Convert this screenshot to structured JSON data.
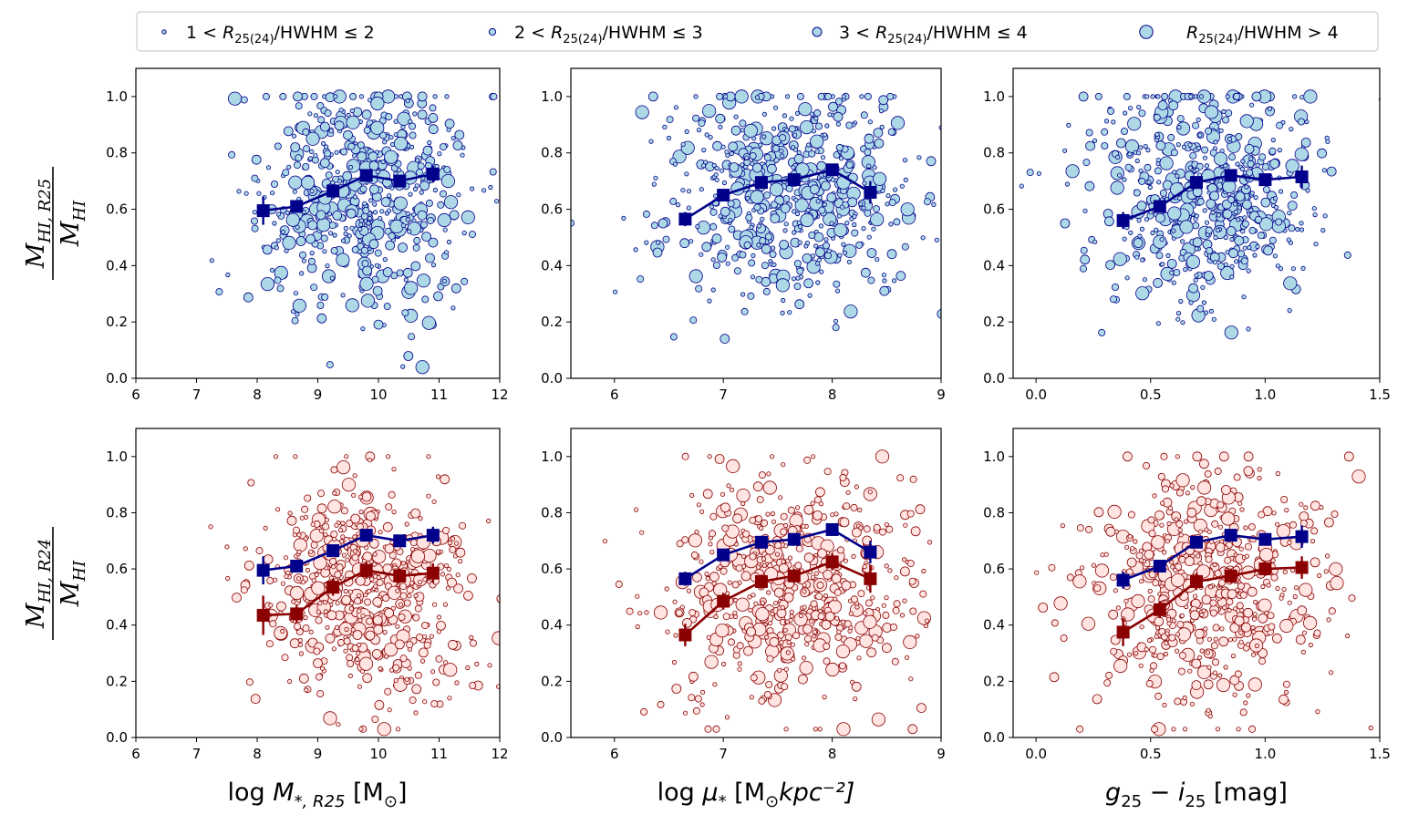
{
  "colors": {
    "top_fill": "#add8e6",
    "top_edge": "#00008b",
    "bottom_fill": "#ffe4e1",
    "bottom_edge": "#8b0000",
    "trend_blue": "#00008b",
    "trend_red": "#8b0000"
  },
  "legend": {
    "items": [
      {
        "prefix": "1 <",
        "var": "R",
        "sub": "25(24)",
        "suffix": "/HWHM ≤ 2",
        "marker_size": 1
      },
      {
        "prefix": "2 <",
        "var": "R",
        "sub": "25(24)",
        "suffix": "/HWHM ≤ 3",
        "marker_size": 2
      },
      {
        "prefix": "3 <",
        "var": "R",
        "sub": "25(24)",
        "suffix": "/HWHM ≤ 4",
        "marker_size": 3
      },
      {
        "prefix": "",
        "var": "R",
        "sub": "25(24)",
        "suffix": "/HWHM > 4",
        "marker_size": 4
      }
    ]
  },
  "row_labels": [
    {
      "num": "M",
      "num_sub": "HI, R25",
      "den": "M",
      "den_sub": "HI"
    },
    {
      "num": "M",
      "num_sub": "HI, R24",
      "den": "M",
      "den_sub": "HI"
    }
  ],
  "col_labels": [
    {
      "pre": "log ",
      "var": "M",
      "sub": "*, R25",
      "post": " [M",
      "post_sub": "⊙",
      "tail": "]"
    },
    {
      "pre": "log ",
      "var": "μ",
      "sub": "*",
      "post": " [M",
      "post_sub": "⊙",
      "tail": "kpc⁻²]"
    },
    {
      "pre": "",
      "var": "g",
      "sub": "25",
      "post": " − i",
      "post_sub": "25",
      "tail": " [mag]"
    }
  ],
  "chart_data": [
    {
      "id": "top-mass",
      "type": "scatter",
      "row": 0,
      "col": 0,
      "xlim": [
        6,
        12
      ],
      "ylim": [
        0,
        1.1
      ],
      "xticks": [
        "6",
        "7",
        "8",
        "9",
        "10",
        "11",
        "12"
      ],
      "xtick_values": [
        6,
        7,
        8,
        9,
        10,
        11,
        12
      ],
      "yticks": [
        "0.0",
        "0.2",
        "0.4",
        "0.6",
        "0.8",
        "1.0"
      ],
      "ytick_values": [
        0,
        0.2,
        0.4,
        0.6,
        0.8,
        1.0
      ],
      "cloud": {
        "n": 600,
        "x_mean": 9.8,
        "x_sd": 0.9,
        "y_mean": 0.65,
        "y_sd": 0.2,
        "seed": 11
      },
      "series": [
        {
          "name": "blue trend",
          "x": [
            8.1,
            8.65,
            9.25,
            9.8,
            10.35,
            10.9
          ],
          "y": [
            0.595,
            0.61,
            0.665,
            0.72,
            0.7,
            0.725
          ],
          "yerr": [
            0.05,
            0.02,
            0.015,
            0.015,
            0.015,
            0.03
          ]
        }
      ]
    },
    {
      "id": "top-density",
      "type": "scatter",
      "row": 0,
      "col": 1,
      "xlim": [
        5.6,
        9
      ],
      "ylim": [
        0,
        1.1
      ],
      "xticks": [
        "6",
        "7",
        "8",
        "9"
      ],
      "xtick_values": [
        6,
        7,
        8,
        9
      ],
      "yticks": [
        "0.0",
        "0.2",
        "0.4",
        "0.6",
        "0.8",
        "1.0"
      ],
      "ytick_values": [
        0,
        0.2,
        0.4,
        0.6,
        0.8,
        1.0
      ],
      "cloud": {
        "n": 600,
        "x_mean": 7.6,
        "x_sd": 0.55,
        "y_mean": 0.65,
        "y_sd": 0.2,
        "seed": 23
      },
      "series": [
        {
          "name": "blue trend",
          "x": [
            6.65,
            7.0,
            7.35,
            7.65,
            8.0,
            8.35
          ],
          "y": [
            0.565,
            0.65,
            0.695,
            0.705,
            0.74,
            0.66
          ],
          "yerr": [
            0.025,
            0.02,
            0.015,
            0.02,
            0.02,
            0.04
          ]
        }
      ]
    },
    {
      "id": "top-color",
      "type": "scatter",
      "row": 0,
      "col": 2,
      "xlim": [
        -0.1,
        1.5
      ],
      "ylim": [
        0,
        1.1
      ],
      "xticks": [
        "0.0",
        "0.5",
        "1.0",
        "1.5"
      ],
      "xtick_values": [
        0,
        0.5,
        1.0,
        1.5
      ],
      "yticks": [
        "0.0",
        "0.2",
        "0.4",
        "0.6",
        "0.8",
        "1.0"
      ],
      "ytick_values": [
        0,
        0.2,
        0.4,
        0.6,
        0.8,
        1.0
      ],
      "cloud": {
        "n": 600,
        "x_mean": 0.75,
        "x_sd": 0.25,
        "y_mean": 0.65,
        "y_sd": 0.2,
        "seed": 37
      },
      "series": [
        {
          "name": "blue trend",
          "x": [
            0.38,
            0.54,
            0.7,
            0.85,
            1.0,
            1.16
          ],
          "y": [
            0.56,
            0.61,
            0.695,
            0.72,
            0.705,
            0.715
          ],
          "yerr": [
            0.03,
            0.02,
            0.015,
            0.015,
            0.02,
            0.04
          ]
        }
      ]
    },
    {
      "id": "bottom-mass",
      "type": "scatter",
      "row": 1,
      "col": 0,
      "xlim": [
        6,
        12
      ],
      "ylim": [
        0,
        1.1
      ],
      "xticks": [
        "6",
        "7",
        "8",
        "9",
        "10",
        "11",
        "12"
      ],
      "xtick_values": [
        6,
        7,
        8,
        9,
        10,
        11,
        12
      ],
      "yticks": [
        "0.0",
        "0.2",
        "0.4",
        "0.6",
        "0.8",
        "1.0"
      ],
      "ytick_values": [
        0,
        0.2,
        0.4,
        0.6,
        0.8,
        1.0
      ],
      "cloud": {
        "n": 600,
        "x_mean": 9.8,
        "x_sd": 0.9,
        "y_mean": 0.53,
        "y_sd": 0.2,
        "seed": 53
      },
      "series": [
        {
          "name": "blue trend",
          "x": [
            8.1,
            8.65,
            9.25,
            9.8,
            10.35,
            10.9
          ],
          "y": [
            0.595,
            0.61,
            0.665,
            0.72,
            0.7,
            0.72
          ],
          "yerr": [
            0.05,
            0.02,
            0.015,
            0.015,
            0.015,
            0.03
          ]
        },
        {
          "name": "red trend",
          "x": [
            8.1,
            8.65,
            9.25,
            9.8,
            10.35,
            10.9
          ],
          "y": [
            0.435,
            0.44,
            0.535,
            0.595,
            0.575,
            0.585
          ],
          "yerr": [
            0.07,
            0.03,
            0.03,
            0.03,
            0.025,
            0.035
          ]
        }
      ]
    },
    {
      "id": "bottom-density",
      "type": "scatter",
      "row": 1,
      "col": 1,
      "xlim": [
        5.6,
        9
      ],
      "ylim": [
        0,
        1.1
      ],
      "xticks": [
        "6",
        "7",
        "8",
        "9"
      ],
      "xtick_values": [
        6,
        7,
        8,
        9
      ],
      "yticks": [
        "0.0",
        "0.2",
        "0.4",
        "0.6",
        "0.8",
        "1.0"
      ],
      "ytick_values": [
        0,
        0.2,
        0.4,
        0.6,
        0.8,
        1.0
      ],
      "cloud": {
        "n": 600,
        "x_mean": 7.6,
        "x_sd": 0.55,
        "y_mean": 0.53,
        "y_sd": 0.2,
        "seed": 71
      },
      "series": [
        {
          "name": "blue trend",
          "x": [
            6.65,
            7.0,
            7.35,
            7.65,
            8.0,
            8.35
          ],
          "y": [
            0.565,
            0.65,
            0.695,
            0.705,
            0.74,
            0.66
          ],
          "yerr": [
            0.025,
            0.02,
            0.015,
            0.02,
            0.02,
            0.04
          ]
        },
        {
          "name": "red trend",
          "x": [
            6.65,
            7.0,
            7.35,
            7.65,
            8.0,
            8.35
          ],
          "y": [
            0.365,
            0.485,
            0.555,
            0.575,
            0.625,
            0.565
          ],
          "yerr": [
            0.04,
            0.03,
            0.025,
            0.025,
            0.03,
            0.05
          ]
        }
      ]
    },
    {
      "id": "bottom-color",
      "type": "scatter",
      "row": 1,
      "col": 2,
      "xlim": [
        -0.1,
        1.5
      ],
      "ylim": [
        0,
        1.1
      ],
      "xticks": [
        "0.0",
        "0.5",
        "1.0",
        "1.5"
      ],
      "xtick_values": [
        0,
        0.5,
        1.0,
        1.5
      ],
      "yticks": [
        "0.0",
        "0.2",
        "0.4",
        "0.6",
        "0.8",
        "1.0"
      ],
      "ytick_values": [
        0,
        0.2,
        0.4,
        0.6,
        0.8,
        1.0
      ],
      "cloud": {
        "n": 600,
        "x_mean": 0.75,
        "x_sd": 0.25,
        "y_mean": 0.53,
        "y_sd": 0.2,
        "seed": 89
      },
      "series": [
        {
          "name": "blue trend",
          "x": [
            0.38,
            0.54,
            0.7,
            0.85,
            1.0,
            1.16
          ],
          "y": [
            0.56,
            0.61,
            0.695,
            0.72,
            0.705,
            0.715
          ],
          "yerr": [
            0.03,
            0.02,
            0.015,
            0.015,
            0.02,
            0.04
          ]
        },
        {
          "name": "red trend",
          "x": [
            0.38,
            0.54,
            0.7,
            0.85,
            1.0,
            1.16
          ],
          "y": [
            0.375,
            0.455,
            0.555,
            0.575,
            0.6,
            0.605
          ],
          "yerr": [
            0.05,
            0.03,
            0.03,
            0.025,
            0.025,
            0.04
          ]
        }
      ]
    }
  ]
}
